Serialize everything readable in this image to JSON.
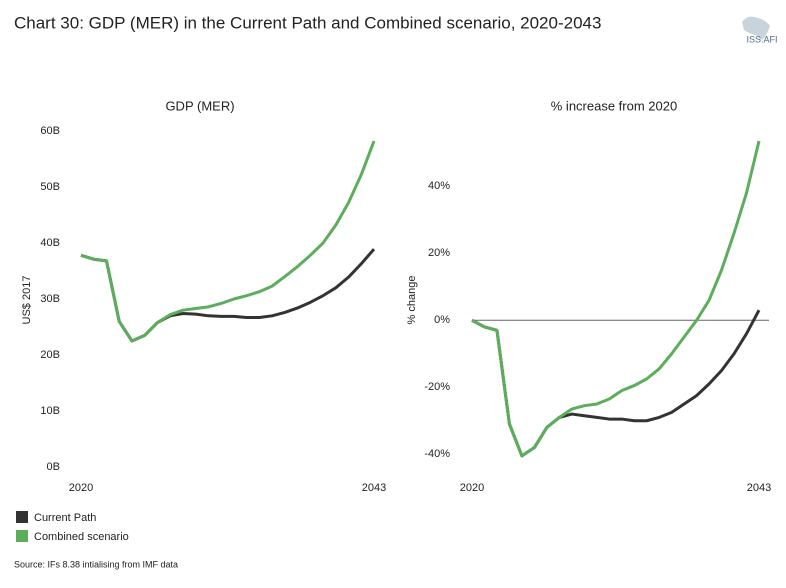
{
  "title": "Chart 30: GDP (MER) in the Current Path and Combined scenario, 2020-2043",
  "logo": "ISS.AFI",
  "source": "Source: IFs 8.38 intialising from IMF data",
  "chart_data": [
    {
      "type": "line",
      "title": "GDP (MER)",
      "ylabel": "US$ 2017",
      "x": [
        2020,
        2021,
        2022,
        2023,
        2024,
        2025,
        2026,
        2027,
        2028,
        2029,
        2030,
        2031,
        2032,
        2033,
        2034,
        2035,
        2036,
        2037,
        2038,
        2039,
        2040,
        2041,
        2042,
        2043
      ],
      "xlim": [
        2020,
        2043
      ],
      "xticks": [
        2020,
        2043
      ],
      "ylim": [
        0,
        60
      ],
      "yticks": [
        {
          "value": 0,
          "label": "0B"
        },
        {
          "value": 10,
          "label": "10B"
        },
        {
          "value": 20,
          "label": "20B"
        },
        {
          "value": 30,
          "label": "30B"
        },
        {
          "value": 40,
          "label": "40B"
        },
        {
          "value": 50,
          "label": "50B"
        },
        {
          "value": 60,
          "label": "60B"
        }
      ],
      "series": [
        {
          "name": "Current Path",
          "color": "#333333",
          "values": [
            37.8,
            37.1,
            36.8,
            26,
            22.5,
            23.5,
            25.8,
            27,
            27.4,
            27.3,
            27,
            26.9,
            26.9,
            26.7,
            26.7,
            27,
            27.6,
            28.4,
            29.4,
            30.6,
            32,
            33.9,
            36.3,
            38.9
          ]
        },
        {
          "name": "Combined scenario",
          "color": "#5cad5c",
          "values": [
            37.8,
            37.1,
            36.8,
            26,
            22.5,
            23.5,
            25.8,
            27.2,
            28,
            28.3,
            28.6,
            29.2,
            30,
            30.6,
            31.3,
            32.3,
            34,
            35.8,
            37.8,
            40,
            43.2,
            47.2,
            52.2,
            58.2
          ]
        }
      ]
    },
    {
      "type": "line",
      "title": "% increase from 2020",
      "ylabel": "% change",
      "x": [
        2020,
        2021,
        2022,
        2023,
        2024,
        2025,
        2026,
        2027,
        2028,
        2029,
        2030,
        2031,
        2032,
        2033,
        2034,
        2035,
        2036,
        2037,
        2038,
        2039,
        2040,
        2041,
        2042,
        2043
      ],
      "xlim": [
        2020,
        2043
      ],
      "xticks": [
        2020,
        2043
      ],
      "ylim": [
        -45,
        55
      ],
      "yticks": [
        {
          "value": -40,
          "label": "-40%"
        },
        {
          "value": -20,
          "label": "-20%"
        },
        {
          "value": 0,
          "label": "0%"
        },
        {
          "value": 20,
          "label": "20%"
        },
        {
          "value": 40,
          "label": "40%"
        }
      ],
      "zero_line": true,
      "series": [
        {
          "name": "Current Path",
          "color": "#333333",
          "values": [
            0,
            -2,
            -3,
            -31,
            -40.5,
            -38,
            -32,
            -29,
            -28,
            -28.5,
            -29,
            -29.5,
            -29.5,
            -30,
            -30,
            -29,
            -27.5,
            -25,
            -22.5,
            -19,
            -15,
            -10,
            -4,
            3
          ]
        },
        {
          "name": "Combined scenario",
          "color": "#5cad5c",
          "values": [
            0,
            -2,
            -3,
            -31,
            -40.5,
            -38,
            -32,
            -29,
            -26.5,
            -25.5,
            -25,
            -23.5,
            -21,
            -19.5,
            -17.5,
            -14.5,
            -10,
            -5,
            0,
            6,
            15,
            26,
            38,
            53.5
          ]
        }
      ]
    }
  ]
}
